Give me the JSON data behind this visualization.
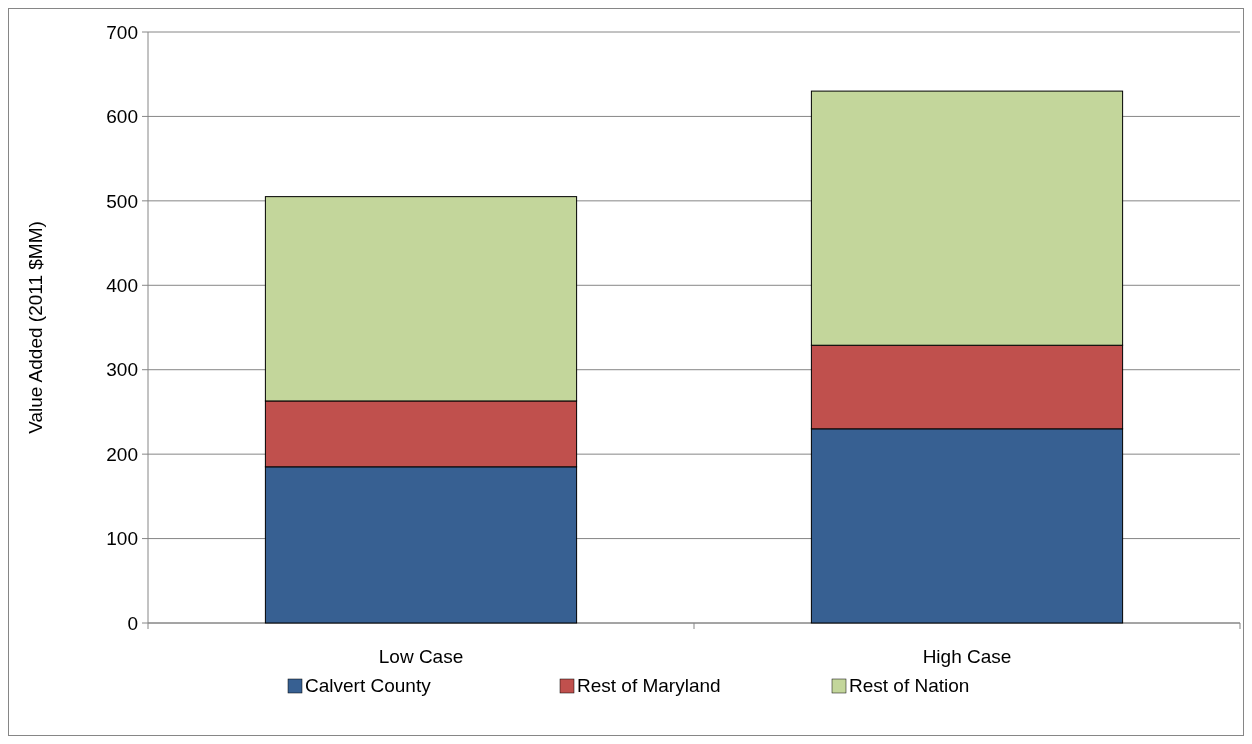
{
  "chart_data": {
    "type": "bar",
    "stacked": true,
    "ylabel": "Value Added (2011 $MM)",
    "categories": [
      "Low Case",
      "High Case"
    ],
    "series": [
      {
        "name": "Calvert County",
        "color": "#376092",
        "values": [
          185,
          230
        ]
      },
      {
        "name": "Rest of Maryland",
        "color": "#c0504d",
        "values": [
          78,
          99
        ]
      },
      {
        "name": "Rest of Nation",
        "color": "#c3d69b",
        "values": [
          242,
          301
        ]
      }
    ],
    "ylim": [
      0,
      700
    ],
    "yticks": [
      0,
      100,
      200,
      300,
      400,
      500,
      600,
      700
    ],
    "grid": "y",
    "legend": "bottom"
  }
}
